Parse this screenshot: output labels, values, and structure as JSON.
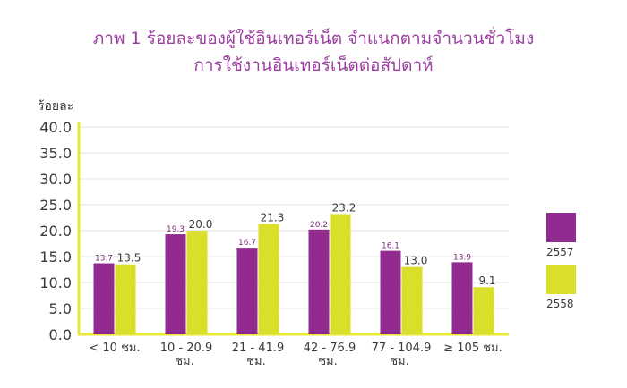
{
  "chart_data": {
    "type": "bar",
    "title_lines": [
      "ภาพ 1 ร้อยละของผู้ใช้อินเทอร์เน็ต จำแนกตามจำนวนชั่วโมง",
      "การใช้งานอินเทอร์เน็ตต่อสัปดาห์"
    ],
    "ylabel": "ร้อยละ",
    "ylim": [
      0,
      40
    ],
    "yticks": [
      "0.0",
      "5.0",
      "10.0",
      "15.0",
      "20.0",
      "25.0",
      "30.0",
      "35.0",
      "40.0"
    ],
    "categories": [
      [
        "< 10 ชม."
      ],
      [
        "10 - 20.9",
        "ชม."
      ],
      [
        "21 - 41.9",
        "ชม."
      ],
      [
        "42 - 76.9",
        "ชม."
      ],
      [
        "77 - 104.9",
        "ชม."
      ],
      [
        "≥ 105 ชม."
      ]
    ],
    "series": [
      {
        "name": "2557",
        "color": "#922b8f",
        "values": [
          13.7,
          19.3,
          16.7,
          20.2,
          16.1,
          13.9
        ],
        "labels": [
          "13.7",
          "19.3",
          "16.7",
          "20.2",
          "16.1",
          "13.9"
        ]
      },
      {
        "name": "2558",
        "color": "#d9df2a",
        "values": [
          13.5,
          20.0,
          21.3,
          23.2,
          13.0,
          9.1
        ],
        "labels": [
          "13.5",
          "20.0",
          "21.3",
          "23.2",
          "13.0",
          "9.1"
        ]
      }
    ],
    "grid": true,
    "legend": "right"
  }
}
